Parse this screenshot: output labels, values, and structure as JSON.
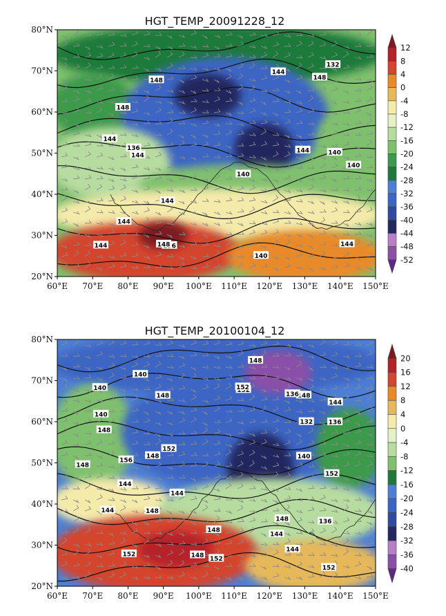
{
  "palette": {
    "panel1": [
      "#5b2a86",
      "#8a4fa8",
      "#b87fc8",
      "#24285f",
      "#2f4aa0",
      "#3c66c4",
      "#4d7fd4",
      "#1f7a3a",
      "#3c9a4c",
      "#7fc06e",
      "#b7dca0",
      "#e4f1c6",
      "#f4eaaa",
      "#e6b85a",
      "#e98a2a",
      "#d4452e",
      "#b5212a",
      "#7c1a22"
    ],
    "panel2": [
      "#5b2a86",
      "#8a4fa8",
      "#b87fc8",
      "#24285f",
      "#2f4aa0",
      "#3c66c4",
      "#4d7fd4",
      "#1f7a3a",
      "#3c9a4c",
      "#7fc06e",
      "#b7dca0",
      "#e4f1c6",
      "#f4eaaa",
      "#e6b85a",
      "#e98a2a",
      "#d4452e",
      "#b5212a",
      "#7c1a22"
    ]
  },
  "panels": [
    {
      "id": "p1",
      "title": "HGT_TEMP_20091228_12",
      "lat_ticks": [
        "80°N",
        "70°N",
        "60°N",
        "50°N",
        "40°N",
        "30°N",
        "20°N"
      ],
      "lon_ticks": [
        "60°E",
        "70°E",
        "80°E",
        "90°E",
        "100°E",
        "110°E",
        "120°E",
        "130°E",
        "140°E",
        "150°E"
      ],
      "colorbar_labels": [
        "12",
        "8",
        "4",
        "0",
        "-4",
        "-8",
        "-12",
        "-16",
        "-20",
        "-24",
        "-28",
        "-32",
        "-36",
        "-40",
        "-44",
        "-48",
        "-52"
      ],
      "contour_labels": [
        "144",
        "144",
        "140",
        "140",
        "144",
        "140",
        "136",
        "148",
        "144",
        "136",
        "132",
        "140",
        "144",
        "148",
        "144",
        "144",
        "148",
        "148",
        "144"
      ],
      "temperature_regions": [
        {
          "lon": [
            60,
            150
          ],
          "lat": [
            68,
            80
          ],
          "t": -26
        },
        {
          "lon": [
            60,
            80
          ],
          "lat": [
            55,
            68
          ],
          "t": -22
        },
        {
          "lon": [
            80,
            135
          ],
          "lat": [
            45,
            72
          ],
          "t": -33
        },
        {
          "lon": [
            95,
            110
          ],
          "lat": [
            60,
            68
          ],
          "t": -38
        },
        {
          "lon": [
            112,
            125
          ],
          "lat": [
            46,
            56
          ],
          "t": -40
        },
        {
          "lon": [
            135,
            150
          ],
          "lat": [
            45,
            60
          ],
          "t": -18
        },
        {
          "lon": [
            60,
            90
          ],
          "lat": [
            40,
            55
          ],
          "t": -14
        },
        {
          "lon": [
            85,
            140
          ],
          "lat": [
            38,
            46
          ],
          "t": -20
        },
        {
          "lon": [
            60,
            150
          ],
          "lat": [
            30,
            40
          ],
          "t": -6
        },
        {
          "lon": [
            60,
            110
          ],
          "lat": [
            20,
            32
          ],
          "t": 2
        },
        {
          "lon": [
            85,
            95
          ],
          "lat": [
            28,
            32
          ],
          "t": 10
        },
        {
          "lon": [
            110,
            150
          ],
          "lat": [
            20,
            30
          ],
          "t": -2
        }
      ]
    },
    {
      "id": "p2",
      "title": "HGT_TEMP_20100104_12",
      "lat_ticks": [
        "80°N",
        "70°N",
        "60°N",
        "50°N",
        "40°N",
        "30°N",
        "20°N"
      ],
      "lon_ticks": [
        "60°E",
        "70°E",
        "80°E",
        "90°E",
        "100°E",
        "110°E",
        "120°E",
        "130°E",
        "140°E",
        "150°E"
      ],
      "colorbar_labels": [
        "20",
        "16",
        "12",
        "8",
        "4",
        "0",
        "-4",
        "-8",
        "-12",
        "-16",
        "-20",
        "-24",
        "-28",
        "-32",
        "-36",
        "-40"
      ],
      "contour_labels": [
        "140",
        "144",
        "148",
        "152",
        "152",
        "156",
        "152",
        "152",
        "148",
        "148",
        "144",
        "140",
        "148",
        "136",
        "148",
        "140",
        "136",
        "144",
        "148",
        "152",
        "152",
        "148",
        "144",
        "148",
        "148",
        "144",
        "148",
        "132",
        "136",
        "140",
        "144",
        "152"
      ],
      "temperature_regions": [
        {
          "lon": [
            60,
            150
          ],
          "lat": [
            68,
            80
          ],
          "t": -22
        },
        {
          "lon": [
            60,
            80
          ],
          "lat": [
            45,
            68
          ],
          "t": -8
        },
        {
          "lon": [
            80,
            140
          ],
          "lat": [
            45,
            70
          ],
          "t": -22
        },
        {
          "lon": [
            115,
            130
          ],
          "lat": [
            68,
            76
          ],
          "t": -34
        },
        {
          "lon": [
            110,
            125
          ],
          "lat": [
            40,
            56
          ],
          "t": -28
        },
        {
          "lon": [
            135,
            150
          ],
          "lat": [
            45,
            62
          ],
          "t": -12
        },
        {
          "lon": [
            60,
            90
          ],
          "lat": [
            36,
            45
          ],
          "t": 2
        },
        {
          "lon": [
            90,
            150
          ],
          "lat": [
            30,
            45
          ],
          "t": -6
        },
        {
          "lon": [
            60,
            115
          ],
          "lat": [
            20,
            36
          ],
          "t": 10
        },
        {
          "lon": [
            85,
            102
          ],
          "lat": [
            26,
            32
          ],
          "t": 16
        },
        {
          "lon": [
            115,
            150
          ],
          "lat": [
            20,
            30
          ],
          "t": 4
        }
      ]
    }
  ]
}
